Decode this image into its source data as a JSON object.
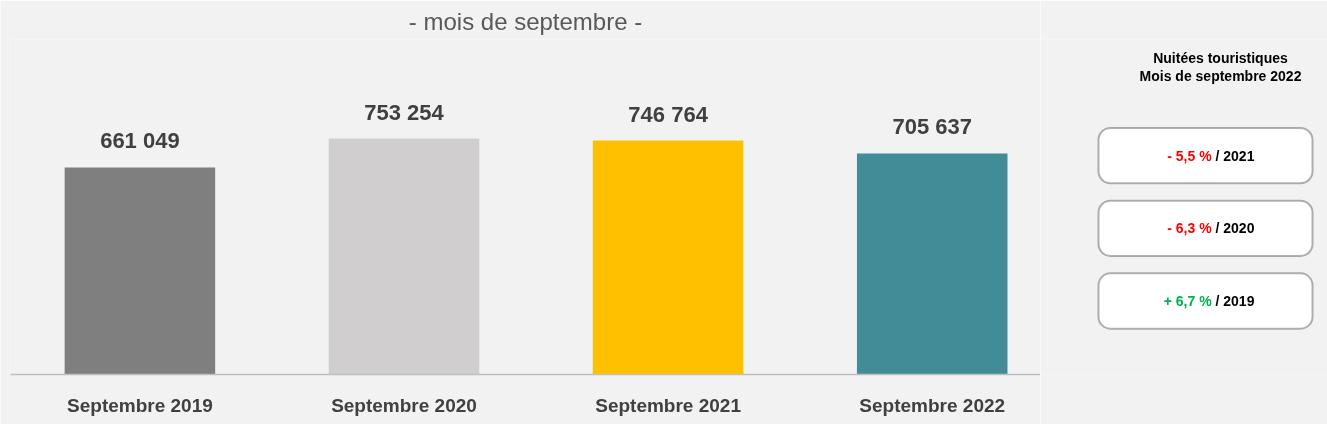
{
  "chart_data": {
    "type": "bar",
    "title": "- mois de septembre -",
    "categories": [
      "Septembre 2019",
      "Septembre 2020",
      "Septembre 2021",
      "Septembre 2022"
    ],
    "values": [
      661049,
      753254,
      746764,
      705637
    ],
    "colors": [
      "#7f7f7f",
      "#d0cece",
      "#ffc000",
      "#418c96"
    ],
    "value_labels": [
      "661 049",
      "753 254",
      "746 764",
      "705 637"
    ],
    "annotations": [
      "Nuitées touristiques",
      "Mois de septembre 2022",
      "- 5,5 % / 2021",
      "- 6,3 % / 2020",
      "+ 6,7 % / 2019"
    ],
    "grid": false
  }
}
